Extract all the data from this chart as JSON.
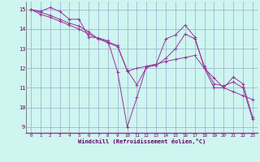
{
  "xlabel": "Windchill (Refroidissement éolien,°C)",
  "bg_color": "#cef5f0",
  "grid_color": "#99aacc",
  "line_color": "#993399",
  "xlim": [
    -0.5,
    23.5
  ],
  "ylim": [
    8.7,
    15.4
  ],
  "yticks": [
    9,
    10,
    11,
    12,
    13,
    14,
    15
  ],
  "xticks": [
    0,
    1,
    2,
    3,
    4,
    5,
    6,
    7,
    8,
    9,
    10,
    11,
    12,
    13,
    14,
    15,
    16,
    17,
    18,
    19,
    20,
    21,
    22,
    23
  ],
  "series": [
    [
      15.0,
      14.9,
      15.1,
      14.9,
      14.5,
      14.5,
      13.6,
      13.55,
      13.4,
      11.8,
      9.0,
      10.5,
      12.1,
      12.2,
      13.5,
      13.7,
      14.2,
      13.6,
      12.0,
      11.0,
      11.0,
      11.55,
      11.2,
      9.5
    ],
    [
      15.0,
      14.85,
      14.7,
      14.5,
      14.3,
      14.15,
      13.85,
      13.5,
      13.35,
      13.15,
      11.85,
      12.0,
      12.1,
      12.2,
      12.35,
      12.45,
      12.55,
      12.65,
      12.0,
      11.5,
      11.0,
      10.8,
      10.6,
      10.4
    ],
    [
      15.0,
      14.75,
      14.6,
      14.4,
      14.2,
      14.0,
      13.75,
      13.5,
      13.3,
      13.1,
      11.9,
      11.15,
      12.05,
      12.15,
      12.5,
      13.0,
      13.75,
      13.5,
      12.1,
      11.2,
      11.1,
      11.3,
      11.0,
      9.4
    ]
  ]
}
